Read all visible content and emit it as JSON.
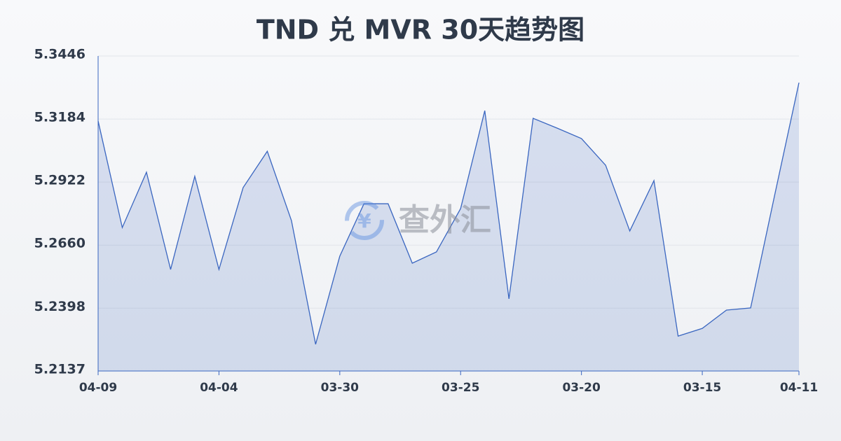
{
  "chart_data": {
    "type": "area",
    "title": "TND 兑 MVR 30天趋势图",
    "watermark": "查外汇",
    "categories": [
      "04-09",
      null,
      null,
      null,
      null,
      "04-04",
      null,
      null,
      null,
      null,
      "03-30",
      null,
      null,
      null,
      null,
      "03-25",
      null,
      null,
      null,
      null,
      "03-20",
      null,
      null,
      null,
      null,
      "03-15",
      null,
      null,
      null,
      "04-11"
    ],
    "values": [
      5.3176,
      5.2733,
      5.2963,
      5.2559,
      5.2946,
      5.2559,
      5.2899,
      5.305,
      5.2762,
      5.2248,
      5.2614,
      5.2832,
      5.2832,
      5.2585,
      5.2632,
      5.2812,
      5.3219,
      5.2437,
      5.3187,
      5.3146,
      5.3103,
      5.2992,
      5.2719,
      5.2928,
      5.2282,
      5.2314,
      5.239,
      5.2399,
      5.287,
      5.3335
    ],
    "color": "#3a66c0",
    "ylim": [
      5.2137,
      5.3446
    ],
    "yticks": [
      5.2137,
      5.2398,
      {
        "value": 5.266,
        "label": "5.2660"
      },
      5.2922,
      5.3184,
      5.3446
    ],
    "grid": true
  }
}
